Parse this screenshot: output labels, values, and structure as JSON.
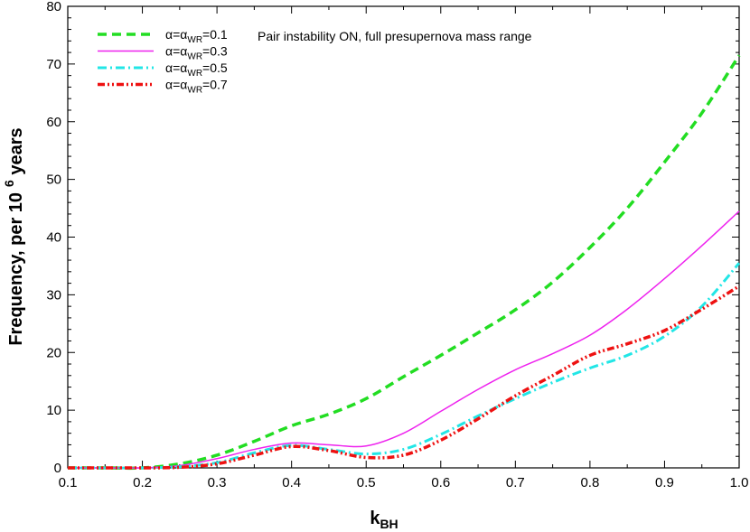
{
  "chart_data": {
    "type": "line",
    "annotation": "Pair instability ON, full presupernova mass range",
    "xlabel": {
      "main": "k",
      "sub": "BH"
    },
    "ylabel": {
      "main": "Frequency, per 10",
      "sup": "6",
      "tail": " years"
    },
    "xlim": [
      0.1,
      1.0
    ],
    "ylim": [
      0,
      80
    ],
    "xticks": [
      "0.1",
      "0.2",
      "0.3",
      "0.4",
      "0.5",
      "0.6",
      "0.7",
      "0.8",
      "0.9",
      "1.0"
    ],
    "yticks": [
      "0",
      "10",
      "20",
      "30",
      "40",
      "50",
      "60",
      "70",
      "80"
    ],
    "grid": false,
    "legend_position": "top-left",
    "x": [
      0.1,
      0.15,
      0.2,
      0.25,
      0.3,
      0.35,
      0.4,
      0.45,
      0.5,
      0.55,
      0.6,
      0.65,
      0.7,
      0.75,
      0.8,
      0.85,
      0.9,
      0.95,
      1.0
    ],
    "series": [
      {
        "label_prefix": "α=α",
        "label_sub": "WR",
        "label_value": "=0.1",
        "color": "#22dd22",
        "dash": "10,6",
        "width": 3.5,
        "values": [
          0,
          0,
          0,
          0.7,
          2.2,
          4.6,
          7.3,
          9.3,
          12.0,
          15.8,
          19.5,
          23.4,
          27.4,
          32.2,
          38.2,
          45.0,
          53.0,
          61.5,
          71.5
        ]
      },
      {
        "label_prefix": "α=α",
        "label_sub": "WR",
        "label_value": "=0.3",
        "color": "#ee22ee",
        "dash": "",
        "width": 1.5,
        "values": [
          0,
          0,
          0,
          0.4,
          1.6,
          3.2,
          4.3,
          4.0,
          3.8,
          6.0,
          9.8,
          13.6,
          17.0,
          19.8,
          23.0,
          27.5,
          32.8,
          38.5,
          44.5
        ]
      },
      {
        "label_prefix": "α=α",
        "label_sub": "WR",
        "label_value": "=0.5",
        "color": "#22e6e6",
        "dash": "10,4,2,4",
        "width": 3,
        "values": [
          0,
          0,
          0,
          0.2,
          0.9,
          2.6,
          3.9,
          3.2,
          2.4,
          3.2,
          5.8,
          9.0,
          12.0,
          14.8,
          17.3,
          19.5,
          22.8,
          28.0,
          35.5
        ]
      },
      {
        "label_prefix": "α=α",
        "label_sub": "WR",
        "label_value": "=0.7",
        "color": "#ee1111",
        "dash": "8,3,2,3,2,3",
        "width": 3.5,
        "values": [
          0,
          0,
          0,
          0.1,
          0.7,
          2.2,
          3.7,
          3.0,
          1.8,
          2.2,
          4.8,
          8.5,
          12.5,
          16.0,
          19.5,
          21.5,
          23.8,
          27.5,
          31.5
        ]
      }
    ]
  }
}
